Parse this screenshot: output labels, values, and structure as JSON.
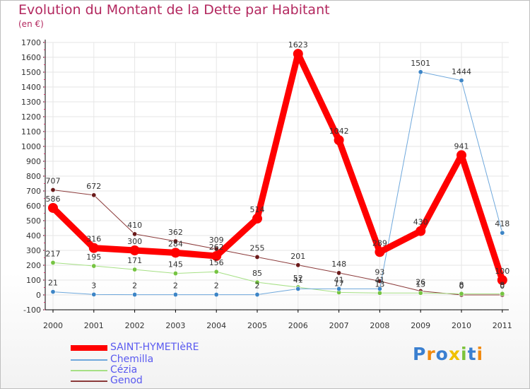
{
  "header": {
    "title": "Evolution du Montant de la Dette par Habitant",
    "unit": "(en €)"
  },
  "logo": {
    "text": "Proxiti",
    "letters": [
      "P",
      "r",
      "o",
      "x",
      "i",
      "t",
      "i"
    ]
  },
  "colors": {
    "title": "#b3285f",
    "grid": "#e6e6e6",
    "axis": "#000000",
    "legend_text": "#5a5af0",
    "logo": [
      "#3a7fd0",
      "#f08a10",
      "#3a7fd0",
      "#f0c000",
      "#7cc33a",
      "#3a7fd0",
      "#f08a10"
    ]
  },
  "chart_data": {
    "type": "line",
    "title": "Evolution du Montant de la Dette par Habitant",
    "ylabel": "(en €)",
    "xlabel": "",
    "x": [
      "2000",
      "2001",
      "2002",
      "2003",
      "2004",
      "2005",
      "2006",
      "2007",
      "2008",
      "2009",
      "2010",
      "2011"
    ],
    "ylim": [
      -100,
      1700
    ],
    "yticks": [
      -100,
      0,
      100,
      200,
      300,
      400,
      500,
      600,
      700,
      800,
      900,
      1000,
      1100,
      1200,
      1300,
      1400,
      1500,
      1600,
      1700
    ],
    "grid": true,
    "legend_position": "bottom-left",
    "series": [
      {
        "name": "SAINT-HYMETIèRE",
        "color": "#ff0000",
        "marker_color": "#ff0000",
        "width": 9,
        "values": [
          586,
          316,
          300,
          284,
          262,
          514,
          1623,
          1042,
          289,
          430,
          941,
          100
        ],
        "labels": [
          "586",
          "316",
          "300",
          "284",
          "262",
          "514",
          "1623",
          "1042",
          "289",
          "430",
          "941",
          "100"
        ]
      },
      {
        "name": "Chemilla",
        "color": "#6fa8dc",
        "marker_color": "#3d85c6",
        "width": 1,
        "values": [
          21,
          3,
          2,
          2,
          2,
          2,
          41,
          41,
          41,
          1501,
          1444,
          418
        ],
        "labels": [
          "21",
          "3",
          "2",
          "2",
          "2",
          "2",
          "41",
          "41",
          "41",
          "1501",
          "1444",
          "418"
        ]
      },
      {
        "name": "Cézia",
        "color": "#a6e085",
        "marker_color": "#76c442",
        "width": 1,
        "values": [
          217,
          195,
          171,
          145,
          156,
          85,
          52,
          17,
          13,
          13,
          8,
          8
        ],
        "labels": [
          "217",
          "195",
          "171",
          "145",
          "156",
          "85",
          "52",
          "17",
          "13",
          "13",
          "8",
          "8"
        ]
      },
      {
        "name": "Genod",
        "color": "#8b3a3a",
        "marker_color": "#6b1a1a",
        "width": 1,
        "values": [
          707,
          672,
          410,
          362,
          309,
          255,
          201,
          148,
          93,
          26,
          0,
          0
        ],
        "labels": [
          "707",
          "672",
          "410",
          "362",
          "309",
          "255",
          "201",
          "148",
          "93",
          "26",
          "0",
          "0"
        ]
      }
    ]
  }
}
